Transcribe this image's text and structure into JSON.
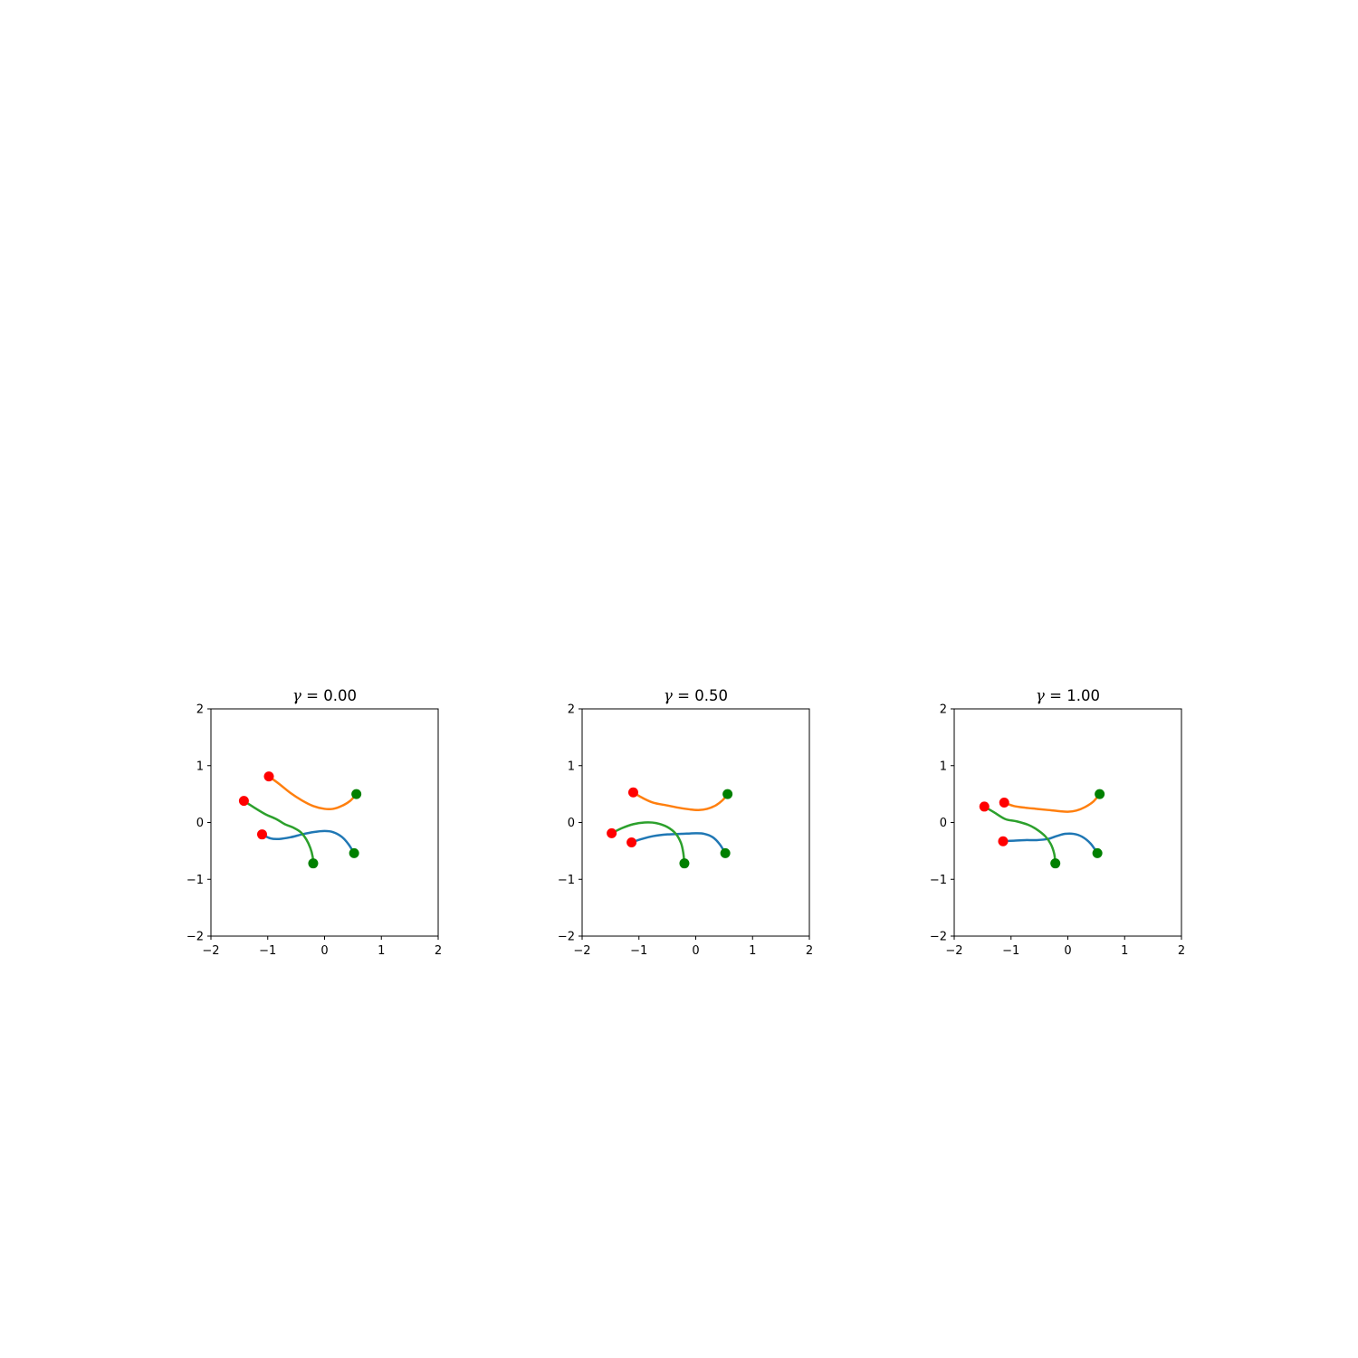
{
  "chart_data": [
    {
      "type": "line",
      "title_lhs": "γ",
      "title_rhs": " = 0.00",
      "xlim": [
        -2,
        2
      ],
      "ylim": [
        -2,
        2
      ],
      "xticks": [
        -2,
        -1,
        0,
        1,
        2
      ],
      "yticks": [
        -2,
        -1,
        0,
        1,
        2
      ],
      "xtick_labels": [
        "−2",
        "−1",
        "0",
        "1",
        "2"
      ],
      "ytick_labels": [
        "−2",
        "−1",
        "0",
        "1",
        "2"
      ],
      "grid": false,
      "start_marker_color": "#ff0000",
      "end_marker_color": "#008000",
      "series": [
        {
          "color": "#1f77b4",
          "points": [
            [
              -1.1,
              -0.21
            ],
            [
              -0.95,
              -0.28
            ],
            [
              -0.8,
              -0.29
            ],
            [
              -0.6,
              -0.26
            ],
            [
              -0.4,
              -0.21
            ],
            [
              -0.2,
              -0.17
            ],
            [
              0.0,
              -0.15
            ],
            [
              0.15,
              -0.17
            ],
            [
              0.3,
              -0.25
            ],
            [
              0.42,
              -0.38
            ],
            [
              0.52,
              -0.54
            ]
          ]
        },
        {
          "color": "#ff7f0e",
          "points": [
            [
              -0.98,
              0.81
            ],
            [
              -0.8,
              0.68
            ],
            [
              -0.6,
              0.52
            ],
            [
              -0.4,
              0.39
            ],
            [
              -0.2,
              0.29
            ],
            [
              0.0,
              0.24
            ],
            [
              0.15,
              0.24
            ],
            [
              0.3,
              0.29
            ],
            [
              0.45,
              0.38
            ],
            [
              0.56,
              0.5
            ]
          ]
        },
        {
          "color": "#2ca02c",
          "points": [
            [
              -1.42,
              0.38
            ],
            [
              -1.25,
              0.27
            ],
            [
              -1.05,
              0.15
            ],
            [
              -0.85,
              0.06
            ],
            [
              -0.7,
              -0.03
            ],
            [
              -0.55,
              -0.09
            ],
            [
              -0.42,
              -0.17
            ],
            [
              -0.32,
              -0.3
            ],
            [
              -0.25,
              -0.45
            ],
            [
              -0.21,
              -0.6
            ],
            [
              -0.2,
              -0.72
            ]
          ]
        }
      ]
    },
    {
      "type": "line",
      "title_lhs": "γ",
      "title_rhs": " = 0.50",
      "xlim": [
        -2,
        2
      ],
      "ylim": [
        -2,
        2
      ],
      "xticks": [
        -2,
        -1,
        0,
        1,
        2
      ],
      "yticks": [
        -2,
        -1,
        0,
        1,
        2
      ],
      "xtick_labels": [
        "−2",
        "−1",
        "0",
        "1",
        "2"
      ],
      "ytick_labels": [
        "−2",
        "−1",
        "0",
        "1",
        "2"
      ],
      "grid": false,
      "start_marker_color": "#ff0000",
      "end_marker_color": "#008000",
      "series": [
        {
          "color": "#1f77b4",
          "points": [
            [
              -1.13,
              -0.35
            ],
            [
              -0.95,
              -0.29
            ],
            [
              -0.75,
              -0.24
            ],
            [
              -0.5,
              -0.21
            ],
            [
              -0.25,
              -0.2
            ],
            [
              0.0,
              -0.19
            ],
            [
              0.15,
              -0.2
            ],
            [
              0.3,
              -0.26
            ],
            [
              0.42,
              -0.38
            ],
            [
              0.52,
              -0.54
            ]
          ]
        },
        {
          "color": "#ff7f0e",
          "points": [
            [
              -1.1,
              0.53
            ],
            [
              -0.95,
              0.44
            ],
            [
              -0.75,
              0.35
            ],
            [
              -0.5,
              0.3
            ],
            [
              -0.3,
              0.26
            ],
            [
              -0.1,
              0.23
            ],
            [
              0.05,
              0.22
            ],
            [
              0.2,
              0.24
            ],
            [
              0.35,
              0.3
            ],
            [
              0.47,
              0.39
            ],
            [
              0.56,
              0.5
            ]
          ]
        },
        {
          "color": "#2ca02c",
          "points": [
            [
              -1.48,
              -0.19
            ],
            [
              -1.3,
              -0.1
            ],
            [
              -1.1,
              -0.03
            ],
            [
              -0.9,
              0.0
            ],
            [
              -0.7,
              -0.01
            ],
            [
              -0.5,
              -0.08
            ],
            [
              -0.35,
              -0.2
            ],
            [
              -0.26,
              -0.36
            ],
            [
              -0.22,
              -0.53
            ],
            [
              -0.2,
              -0.72
            ]
          ]
        }
      ]
    },
    {
      "type": "line",
      "title_lhs": "γ",
      "title_rhs": " = 1.00",
      "xlim": [
        -2,
        2
      ],
      "ylim": [
        -2,
        2
      ],
      "xticks": [
        -2,
        -1,
        0,
        1,
        2
      ],
      "yticks": [
        -2,
        -1,
        0,
        1,
        2
      ],
      "xtick_labels": [
        "−2",
        "−1",
        "0",
        "1",
        "2"
      ],
      "ytick_labels": [
        "−2",
        "−1",
        "0",
        "1",
        "2"
      ],
      "grid": false,
      "start_marker_color": "#ff0000",
      "end_marker_color": "#008000",
      "series": [
        {
          "color": "#1f77b4",
          "points": [
            [
              -1.14,
              -0.33
            ],
            [
              -0.95,
              -0.32
            ],
            [
              -0.75,
              -0.31
            ],
            [
              -0.55,
              -0.31
            ],
            [
              -0.35,
              -0.29
            ],
            [
              -0.2,
              -0.24
            ],
            [
              -0.05,
              -0.2
            ],
            [
              0.1,
              -0.2
            ],
            [
              0.25,
              -0.25
            ],
            [
              0.4,
              -0.37
            ],
            [
              0.52,
              -0.54
            ]
          ]
        },
        {
          "color": "#ff7f0e",
          "points": [
            [
              -1.12,
              0.35
            ],
            [
              -0.95,
              0.29
            ],
            [
              -0.75,
              0.26
            ],
            [
              -0.55,
              0.24
            ],
            [
              -0.35,
              0.22
            ],
            [
              -0.15,
              0.2
            ],
            [
              0.0,
              0.19
            ],
            [
              0.15,
              0.21
            ],
            [
              0.3,
              0.27
            ],
            [
              0.45,
              0.37
            ],
            [
              0.56,
              0.5
            ]
          ]
        },
        {
          "color": "#2ca02c",
          "points": [
            [
              -1.47,
              0.28
            ],
            [
              -1.3,
              0.18
            ],
            [
              -1.1,
              0.06
            ],
            [
              -0.9,
              0.02
            ],
            [
              -0.7,
              -0.04
            ],
            [
              -0.55,
              -0.12
            ],
            [
              -0.4,
              -0.24
            ],
            [
              -0.3,
              -0.38
            ],
            [
              -0.24,
              -0.55
            ],
            [
              -0.22,
              -0.72
            ]
          ]
        }
      ]
    }
  ]
}
